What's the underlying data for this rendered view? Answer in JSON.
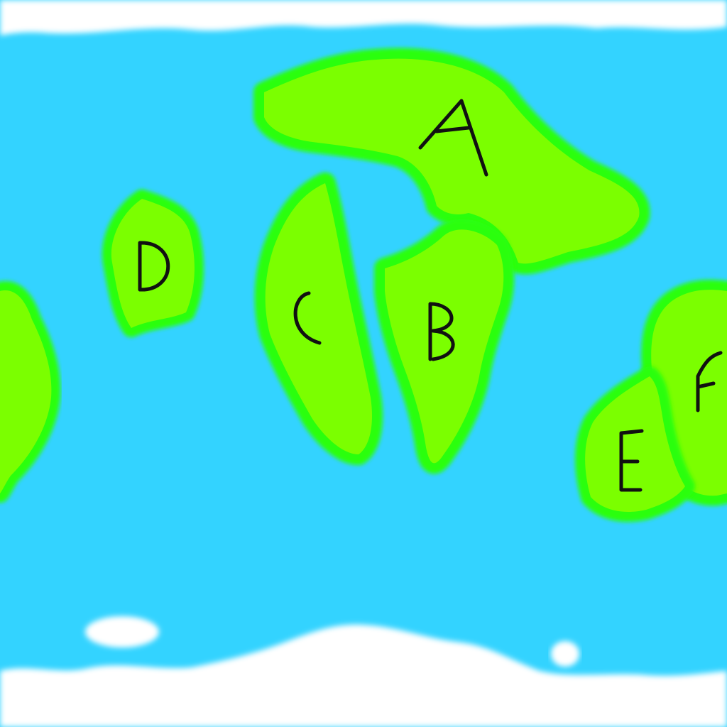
{
  "colors": {
    "ocean": "#33d3ff",
    "land": "#7bff00",
    "coast": "#2cff0a",
    "ice": "#ffffff",
    "label": "#111111"
  },
  "continents": [
    {
      "id": "A",
      "label": "A"
    },
    {
      "id": "B",
      "label": "B"
    },
    {
      "id": "C",
      "label": "C"
    },
    {
      "id": "D",
      "label": "D"
    },
    {
      "id": "E",
      "label": "E"
    },
    {
      "id": "F",
      "label": "F"
    }
  ]
}
